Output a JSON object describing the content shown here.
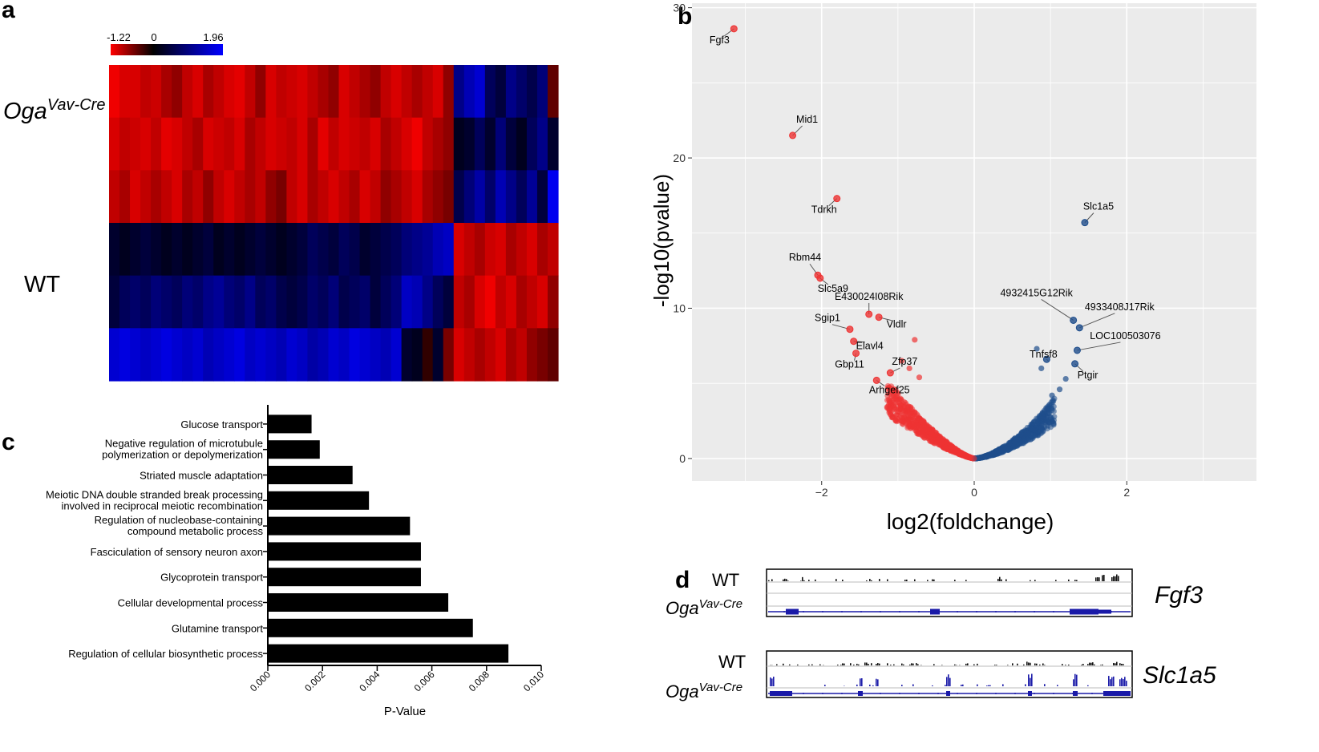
{
  "panels": {
    "a": "a",
    "b": "b",
    "c": "c",
    "d": "d"
  },
  "heatmap": {
    "scale": {
      "min_label": "-1.22",
      "mid_label": "0",
      "max_label": "1.96",
      "low_color": "#ff0000",
      "mid_color": "#000000",
      "high_color": "#0000ff"
    },
    "row_labels": {
      "oga_base": "Oga",
      "oga_sup": "Vav-Cre",
      "wt": "WT"
    },
    "rows": [
      [
        -1.0,
        -0.9,
        -0.9,
        -0.8,
        -0.85,
        -0.7,
        -0.6,
        -0.8,
        -0.9,
        -0.7,
        -0.8,
        -0.9,
        -0.95,
        -0.8,
        -0.6,
        -0.9,
        -0.8,
        -0.85,
        -0.9,
        -0.8,
        -0.7,
        -0.6,
        -0.9,
        -0.8,
        -0.7,
        -0.6,
        -0.8,
        -0.9,
        -0.8,
        -0.7,
        -0.8,
        -0.9,
        -0.6,
        0.9,
        1.2,
        1.4,
        0.6,
        0.4,
        0.9,
        0.7,
        0.5,
        0.8,
        -0.4
      ],
      [
        -0.9,
        -0.8,
        -0.85,
        -0.9,
        -0.8,
        -0.95,
        -0.9,
        -0.8,
        -0.7,
        -0.9,
        -0.85,
        -0.8,
        -0.9,
        -0.7,
        -0.8,
        -0.9,
        -0.85,
        -0.8,
        -0.9,
        -0.7,
        -0.95,
        -0.8,
        -0.9,
        -0.85,
        -0.8,
        -0.9,
        -0.7,
        -0.8,
        -0.9,
        -1.0,
        -0.8,
        -0.7,
        -0.6,
        0.2,
        0.3,
        0.6,
        0.3,
        0.8,
        0.4,
        0.2,
        0.6,
        0.9,
        0.3
      ],
      [
        -0.8,
        -0.7,
        -0.9,
        -0.8,
        -0.7,
        -0.8,
        -0.9,
        -0.7,
        -0.8,
        -0.6,
        -0.8,
        -0.9,
        -0.8,
        -0.7,
        -0.8,
        -0.6,
        -0.5,
        -0.8,
        -0.9,
        -0.7,
        -0.8,
        -0.9,
        -0.8,
        -0.7,
        -0.9,
        -0.8,
        -0.6,
        -0.7,
        -0.8,
        -0.9,
        -0.7,
        -0.6,
        -0.5,
        0.5,
        0.8,
        1.1,
        0.7,
        1.2,
        0.9,
        0.6,
        1.0,
        0.4,
        1.6
      ],
      [
        0.3,
        0.2,
        0.3,
        0.4,
        0.3,
        0.2,
        0.3,
        0.2,
        0.3,
        0.4,
        0.2,
        0.3,
        0.2,
        0.3,
        0.4,
        0.3,
        0.2,
        0.3,
        0.4,
        0.6,
        0.5,
        0.4,
        0.6,
        0.5,
        0.3,
        0.4,
        0.5,
        0.6,
        0.8,
        0.9,
        1.0,
        1.2,
        1.3,
        -0.9,
        -0.8,
        -0.7,
        -0.85,
        -0.9,
        -0.7,
        -0.8,
        -0.9,
        -0.7,
        -0.8
      ],
      [
        0.4,
        0.6,
        0.7,
        0.6,
        0.8,
        0.7,
        0.6,
        0.8,
        0.7,
        0.9,
        1.0,
        0.8,
        0.7,
        0.9,
        0.6,
        0.7,
        0.5,
        0.4,
        0.5,
        0.7,
        0.6,
        0.8,
        0.5,
        0.6,
        0.7,
        0.4,
        0.6,
        0.8,
        1.3,
        1.2,
        0.9,
        0.6,
        0.4,
        -0.8,
        -0.7,
        -0.9,
        -1.0,
        -0.8,
        -0.9,
        -0.7,
        -0.8,
        -0.9,
        -0.6
      ],
      [
        1.4,
        1.5,
        1.4,
        1.3,
        1.4,
        1.5,
        1.4,
        1.3,
        1.4,
        1.2,
        1.3,
        1.4,
        1.5,
        1.3,
        1.4,
        1.3,
        1.2,
        1.4,
        1.3,
        1.1,
        1.2,
        1.4,
        1.3,
        1.5,
        1.4,
        1.3,
        1.2,
        1.4,
        0.3,
        0.2,
        -0.2,
        0.3,
        -0.5,
        -0.9,
        -0.8,
        -0.7,
        -0.8,
        -0.9,
        -0.7,
        -0.8,
        -0.6,
        -0.5,
        -0.4
      ]
    ]
  },
  "volcano": {
    "ylabel": "-log10(pvalue)",
    "xlabel": "log2(foldchange)",
    "xticks": [
      -2,
      0,
      2
    ],
    "xtick_labels": [
      "−2",
      "0",
      "2"
    ],
    "yticks": [
      0,
      10,
      20,
      30
    ],
    "ytick_labels": [
      "0",
      "10",
      "20",
      "30"
    ],
    "xlim": [
      -3.7,
      3.7
    ],
    "ylim": [
      -1.5,
      30.3
    ],
    "colors": {
      "down": "#ee3333",
      "up": "#1f4e8c",
      "background": "#ebebeb",
      "grid": "#ffffff"
    },
    "labeled_points": [
      {
        "label": "Fgf3",
        "x": -3.15,
        "y": 28.6,
        "color": "down"
      },
      {
        "label": "Mid1",
        "x": -2.38,
        "y": 21.5,
        "color": "down"
      },
      {
        "label": "Tdrkh",
        "x": -1.8,
        "y": 17.3,
        "color": "down"
      },
      {
        "label": "Rbm44",
        "x": -2.05,
        "y": 12.2,
        "color": "down"
      },
      {
        "label": "Slc5a9",
        "x": -2.02,
        "y": 12.0,
        "color": "down"
      },
      {
        "label": "E430024I08Rik",
        "x": -1.38,
        "y": 9.6,
        "color": "down"
      },
      {
        "label": "Vldlr",
        "x": -1.25,
        "y": 9.4,
        "color": "down"
      },
      {
        "label": "Sgip1",
        "x": -1.63,
        "y": 8.6,
        "color": "down"
      },
      {
        "label": "Elavl4",
        "x": -1.58,
        "y": 7.8,
        "color": "down"
      },
      {
        "label": "Gbp11",
        "x": -1.55,
        "y": 7.0,
        "color": "down"
      },
      {
        "label": "Zfp37",
        "x": -1.1,
        "y": 5.7,
        "color": "down"
      },
      {
        "label": "Arhgef25",
        "x": -1.28,
        "y": 5.2,
        "color": "down"
      },
      {
        "label": "Slc1a5",
        "x": 1.45,
        "y": 15.7,
        "color": "up"
      },
      {
        "label": "4932415G12Rik",
        "x": 1.3,
        "y": 9.2,
        "color": "up"
      },
      {
        "label": "4933408J17Rik",
        "x": 1.38,
        "y": 8.7,
        "color": "up"
      },
      {
        "label": "LOC100503076",
        "x": 1.35,
        "y": 7.2,
        "color": "up"
      },
      {
        "label": "Tnfsf8",
        "x": 0.95,
        "y": 6.6,
        "color": "up"
      },
      {
        "label": "Ptgir",
        "x": 1.32,
        "y": 6.3,
        "color": "up"
      }
    ]
  },
  "chart_data": {
    "type": "bar",
    "orientation": "horizontal",
    "categories": [
      "Glucose transport",
      "Negative regulation of microtubule\npolymerization or depolymerization",
      "Striated muscle adaptation",
      "Meiotic DNA double stranded break processing\ninvolved in reciprocal meiotic recombination",
      "Regulation of nucleobase-containing\ncompound metabolic process",
      "Fasciculation of sensory neuron axon",
      "Glycoprotein transport",
      "Cellular developmental process",
      "Glutamine transport",
      "Regulation of cellular biosynthetic process"
    ],
    "values": [
      0.0016,
      0.0019,
      0.0031,
      0.0037,
      0.0052,
      0.0056,
      0.0056,
      0.0066,
      0.0075,
      0.0088
    ],
    "xlabel": "P-Value",
    "xlim": [
      0,
      0.01
    ],
    "xticks": [
      0.0,
      0.002,
      0.004,
      0.006,
      0.008,
      0.01
    ],
    "xtick_labels": [
      "0.000",
      "0.002",
      "0.004",
      "0.006",
      "0.008",
      "0.010"
    ],
    "bar_color": "#000000"
  },
  "tracks": {
    "wt_label": "WT",
    "oga_base": "Oga",
    "oga_sup": "Vav-Cre",
    "genes": [
      "Fgf3",
      "Slc1a5"
    ],
    "colors": {
      "wt": "#111111",
      "oga": "#1a1aa8",
      "gene": "#1a1aa8"
    }
  }
}
